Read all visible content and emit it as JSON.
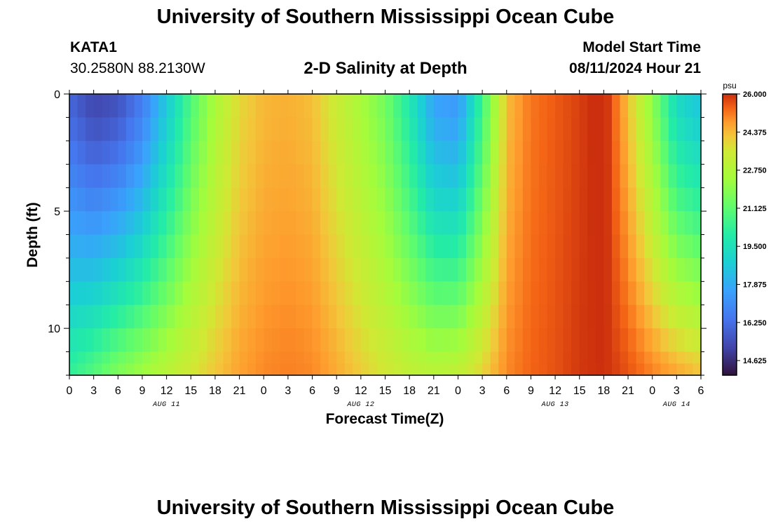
{
  "header": {
    "title": "University of Southern Mississippi Ocean Cube",
    "station_id": "KATA1",
    "station_coords": "30.2580N  88.2130W",
    "subtitle": "2-D Salinity at Depth",
    "model_start_label": "Model Start Time",
    "model_start_value": "08/11/2024 Hour 21"
  },
  "footer": {
    "title": "University of Southern Mississippi Ocean Cube"
  },
  "chart_data": {
    "type": "heatmap",
    "title": "2-D Salinity at Depth",
    "xlabel": "Forecast Time(Z)",
    "ylabel": "Depth (ft)",
    "x_range_hours": [
      0,
      78
    ],
    "y_range_ft": [
      0,
      12
    ],
    "x_tick_labels": [
      "0",
      "3",
      "6",
      "9",
      "12",
      "15",
      "18",
      "21",
      "0",
      "3",
      "6",
      "9",
      "12",
      "15",
      "18",
      "21",
      "0",
      "3",
      "6",
      "9",
      "12",
      "15",
      "18",
      "21",
      "0",
      "3",
      "6"
    ],
    "day_labels": [
      {
        "text": "AUG 11",
        "hour": 12
      },
      {
        "text": "AUG 12",
        "hour": 36
      },
      {
        "text": "AUG 13",
        "hour": 60
      },
      {
        "text": "AUG 14",
        "hour": 75
      }
    ],
    "y_ticks": [
      {
        "value": 0,
        "label": "0"
      },
      {
        "value": 5,
        "label": "5"
      },
      {
        "value": 10,
        "label": "10"
      }
    ],
    "colorbar": {
      "unit": "psu",
      "min": 14.0,
      "max": 26.0,
      "labels": [
        "26.000",
        "24.375",
        "22.750",
        "21.125",
        "19.500",
        "17.875",
        "16.250",
        "14.625"
      ]
    },
    "depth_levels_ft": [
      0,
      1,
      2,
      3,
      4,
      5,
      6,
      7,
      8,
      9,
      10,
      11,
      11.5,
      12
    ],
    "salinity_profile_surface": {
      "hours": [
        0,
        3,
        6,
        9,
        12,
        15,
        18,
        21,
        24,
        27,
        30,
        33,
        36,
        39,
        42,
        45,
        48,
        51,
        54,
        57,
        60,
        63,
        66,
        69,
        72,
        75,
        78
      ],
      "values": [
        16.0,
        15.2,
        15.5,
        16.6,
        18.6,
        20.8,
        22.6,
        23.9,
        24.4,
        24.5,
        24.3,
        23.4,
        22.5,
        21.5,
        19.8,
        17.6,
        17.3,
        20.5,
        24.3,
        25.2,
        25.5,
        25.8,
        26.2,
        24.3,
        22.0,
        19.2,
        18.5
      ]
    },
    "salinity_profile_bottom": {
      "hours": [
        0,
        3,
        6,
        9,
        12,
        15,
        18,
        21,
        24,
        27,
        30,
        33,
        36,
        39,
        42,
        45,
        48,
        51,
        54,
        57,
        60,
        63,
        66,
        69,
        72,
        75,
        78
      ],
      "values": [
        20.3,
        21.0,
        21.8,
        22.4,
        23.0,
        23.6,
        24.2,
        24.7,
        25.0,
        25.1,
        25.0,
        24.6,
        24.1,
        23.6,
        23.2,
        23.0,
        23.2,
        24.0,
        25.0,
        25.4,
        25.6,
        25.9,
        26.0,
        25.6,
        25.1,
        24.7,
        24.3
      ]
    }
  }
}
